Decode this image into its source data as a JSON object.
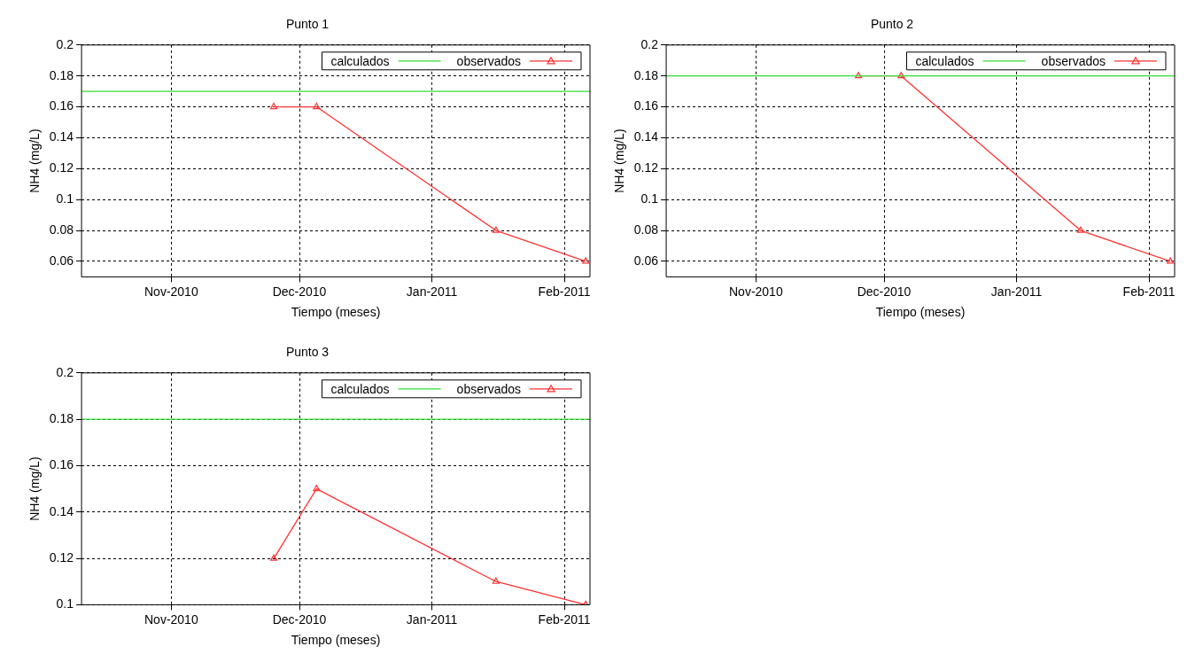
{
  "chart_data": [
    {
      "type": "line",
      "title": "Punto 1",
      "xlabel": "Tiempo (meses)",
      "ylabel": "NH4 (mg/L)",
      "xlim": [
        "2010-10-11",
        "2011-02-07"
      ],
      "xticks": [
        {
          "value": "2010-11-01",
          "label": "Nov-2010"
        },
        {
          "value": "2010-12-01",
          "label": "Dec-2010"
        },
        {
          "value": "2011-01-01",
          "label": "Jan-2011"
        },
        {
          "value": "2011-02-01",
          "label": "Feb-2011"
        }
      ],
      "ylim": [
        0.05,
        0.2
      ],
      "yticks": [
        0.06,
        0.08,
        0.1,
        0.12,
        0.14,
        0.16,
        0.18,
        0.2
      ],
      "grid": true,
      "legend": "top right",
      "series": [
        {
          "name": "calculados",
          "color": "#33dd33",
          "marker": "none",
          "x": [
            "2010-10-11",
            "2011-02-07"
          ],
          "values": [
            0.17,
            0.17
          ]
        },
        {
          "name": "observados",
          "color": "#ff3333",
          "marker": "triangle",
          "x": [
            "2010-11-25",
            "2010-12-05",
            "2011-01-16",
            "2011-02-06"
          ],
          "values": [
            0.16,
            0.16,
            0.08,
            0.06
          ]
        }
      ]
    },
    {
      "type": "line",
      "title": "Punto 2",
      "xlabel": "Tiempo (meses)",
      "ylabel": "NH4 (mg/L)",
      "xlim": [
        "2010-10-11",
        "2011-02-07"
      ],
      "xticks": [
        {
          "value": "2010-11-01",
          "label": "Nov-2010"
        },
        {
          "value": "2010-12-01",
          "label": "Dec-2010"
        },
        {
          "value": "2011-01-01",
          "label": "Jan-2011"
        },
        {
          "value": "2011-02-01",
          "label": "Feb-2011"
        }
      ],
      "ylim": [
        0.05,
        0.2
      ],
      "yticks": [
        0.06,
        0.08,
        0.1,
        0.12,
        0.14,
        0.16,
        0.18,
        0.2
      ],
      "grid": true,
      "legend": "top right",
      "series": [
        {
          "name": "calculados",
          "color": "#33dd33",
          "marker": "none",
          "x": [
            "2010-10-11",
            "2011-02-07"
          ],
          "values": [
            0.18,
            0.18
          ]
        },
        {
          "name": "observados",
          "color": "#ff3333",
          "marker": "triangle",
          "x": [
            "2010-11-25",
            "2010-12-05",
            "2011-01-16",
            "2011-02-06"
          ],
          "values": [
            0.18,
            0.18,
            0.08,
            0.06
          ]
        }
      ]
    },
    {
      "type": "line",
      "title": "Punto 3",
      "xlabel": "Tiempo (meses)",
      "ylabel": "NH4 (mg/L)",
      "xlim": [
        "2010-10-11",
        "2011-02-07"
      ],
      "xticks": [
        {
          "value": "2010-11-01",
          "label": "Nov-2010"
        },
        {
          "value": "2010-12-01",
          "label": "Dec-2010"
        },
        {
          "value": "2011-01-01",
          "label": "Jan-2011"
        },
        {
          "value": "2011-02-01",
          "label": "Feb-2011"
        }
      ],
      "ylim": [
        0.1,
        0.2
      ],
      "yticks": [
        0.1,
        0.12,
        0.14,
        0.16,
        0.18,
        0.2
      ],
      "grid": true,
      "legend": "top right",
      "series": [
        {
          "name": "calculados",
          "color": "#33dd33",
          "marker": "none",
          "x": [
            "2010-10-11",
            "2011-02-07"
          ],
          "values": [
            0.18,
            0.18
          ]
        },
        {
          "name": "observados",
          "color": "#ff3333",
          "marker": "triangle",
          "x": [
            "2010-11-25",
            "2010-12-05",
            "2011-01-16",
            "2011-02-06"
          ],
          "values": [
            0.12,
            0.15,
            0.11,
            0.1
          ]
        }
      ]
    }
  ]
}
